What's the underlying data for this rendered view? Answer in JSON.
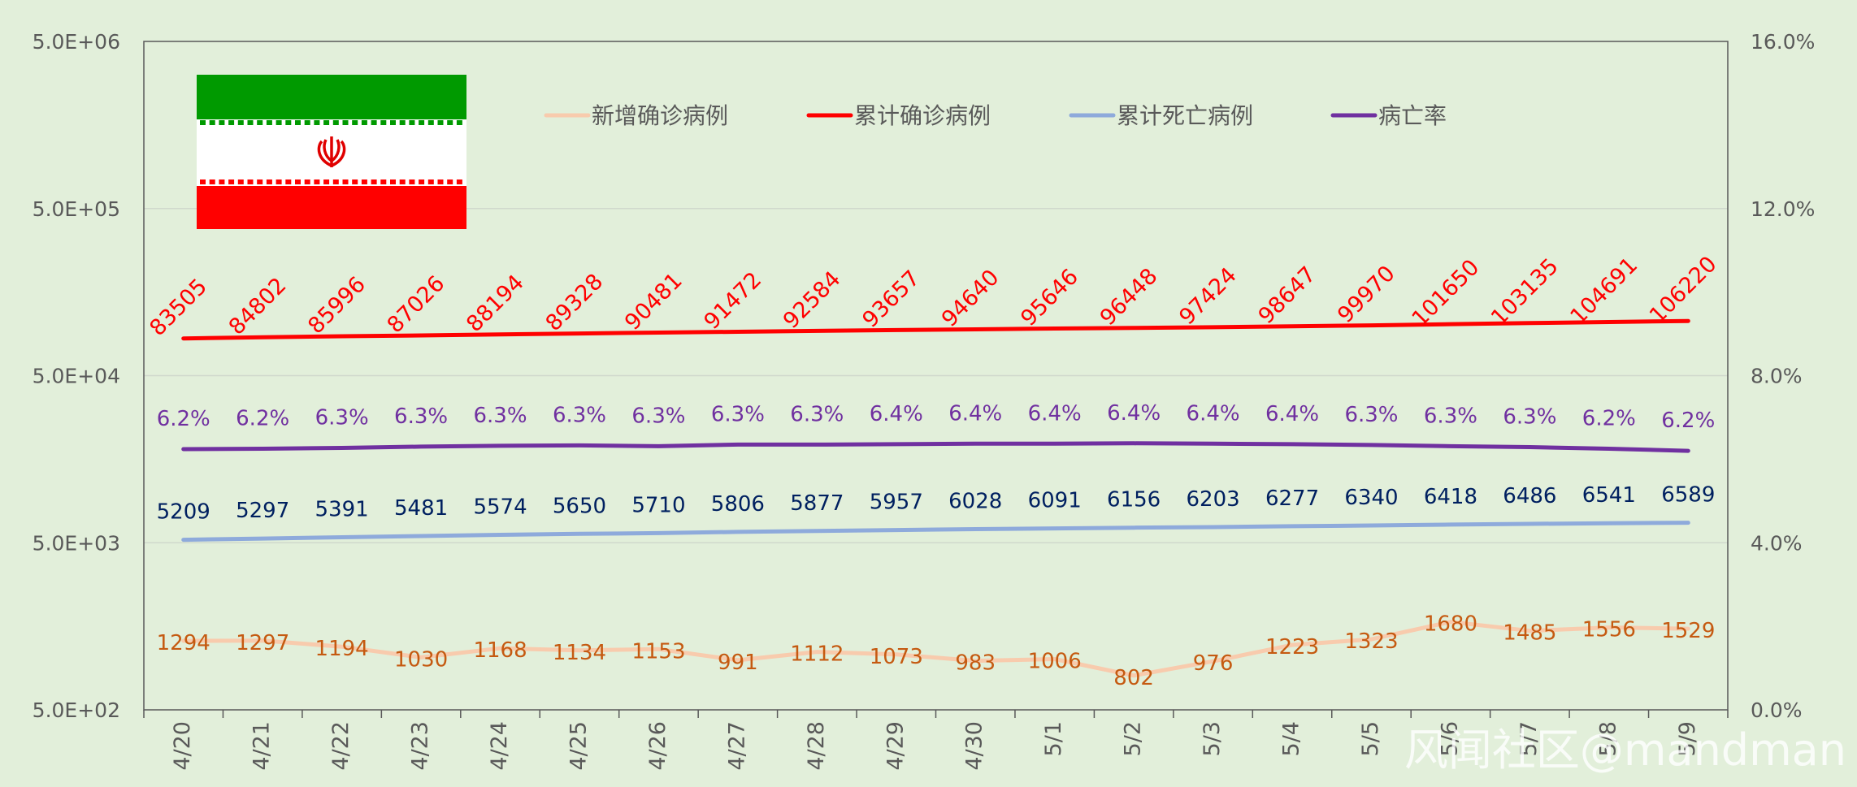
{
  "chart_data": {
    "type": "line",
    "categories": [
      "4/20",
      "4/21",
      "4/22",
      "4/23",
      "4/24",
      "4/25",
      "4/26",
      "4/27",
      "4/28",
      "4/29",
      "4/30",
      "5/1",
      "5/2",
      "5/3",
      "5/4",
      "5/5",
      "5/6",
      "5/7",
      "5/8",
      "5/9"
    ],
    "left_axis": {
      "scale": "log",
      "range": [
        500,
        5000000
      ],
      "ticks": [
        500,
        5000,
        50000,
        500000,
        5000000
      ],
      "tick_labels": [
        "5.0E+02",
        "5.0E+03",
        "5.0E+04",
        "5.0E+05",
        "5.0E+06"
      ]
    },
    "right_axis": {
      "scale": "linear",
      "range": [
        0,
        16
      ],
      "ticks": [
        0,
        4,
        8,
        12,
        16
      ],
      "tick_labels": [
        "0.0%",
        "4.0%",
        "8.0%",
        "12.0%",
        "16.0%"
      ]
    },
    "grid": true,
    "legend_position": "top-center",
    "series": [
      {
        "name": "新增确诊病例",
        "axis": "left",
        "color": "#f8cbad",
        "label_color": "#c55a11",
        "values": [
          1294,
          1297,
          1194,
          1030,
          1168,
          1134,
          1153,
          991,
          1112,
          1073,
          983,
          1006,
          802,
          976,
          1223,
          1323,
          1680,
          1485,
          1556,
          1529
        ],
        "labels": [
          "1294",
          "1297",
          "1194",
          "1030",
          "1168",
          "1134",
          "1153",
          "991",
          "1112",
          "1073",
          "983",
          "1006",
          "802",
          "976",
          "1223",
          "1323",
          "1680",
          "1485",
          "1556",
          "1529"
        ]
      },
      {
        "name": "累计确诊病例",
        "axis": "left",
        "color": "#ff0000",
        "label_color": "#ff0000",
        "values": [
          83505,
          84802,
          85996,
          87026,
          88194,
          89328,
          90481,
          91472,
          92584,
          93657,
          94640,
          95646,
          96448,
          97424,
          98647,
          99970,
          101650,
          103135,
          104691,
          106220
        ],
        "labels": [
          "83505",
          "84802",
          "85996",
          "87026",
          "88194",
          "89328",
          "90481",
          "91472",
          "92584",
          "93657",
          "94640",
          "95646",
          "96448",
          "97424",
          "98647",
          "99970",
          "101650",
          "103135",
          "104691",
          "106220"
        ]
      },
      {
        "name": "累计死亡病例",
        "axis": "left",
        "color": "#8eaadb",
        "label_color": "#002060",
        "values": [
          5209,
          5297,
          5391,
          5481,
          5574,
          5650,
          5710,
          5806,
          5877,
          5957,
          6028,
          6091,
          6156,
          6203,
          6277,
          6340,
          6418,
          6486,
          6541,
          6589
        ],
        "labels": [
          "5209",
          "5297",
          "5391",
          "5481",
          "5574",
          "5650",
          "5710",
          "5806",
          "5877",
          "5957",
          "6028",
          "6091",
          "6156",
          "6203",
          "6277",
          "6340",
          "6418",
          "6486",
          "6541",
          "6589"
        ]
      },
      {
        "name": "病亡率",
        "axis": "right",
        "color": "#7030a0",
        "label_color": "#7030a0",
        "values": [
          6.24,
          6.25,
          6.27,
          6.3,
          6.32,
          6.33,
          6.31,
          6.35,
          6.35,
          6.36,
          6.37,
          6.37,
          6.38,
          6.37,
          6.36,
          6.34,
          6.31,
          6.29,
          6.25,
          6.2
        ],
        "labels": [
          "6.2%",
          "6.2%",
          "6.3%",
          "6.3%",
          "6.3%",
          "6.3%",
          "6.3%",
          "6.3%",
          "6.3%",
          "6.4%",
          "6.4%",
          "6.4%",
          "6.4%",
          "6.4%",
          "6.4%",
          "6.3%",
          "6.3%",
          "6.3%",
          "6.2%",
          "6.2%"
        ]
      }
    ]
  },
  "flag": {
    "top_color": "#009a00",
    "middle_color": "#ffffff",
    "bottom_color": "#ff0000",
    "emblem_color": "#e00000"
  },
  "watermark": "风闻社区@mandman"
}
